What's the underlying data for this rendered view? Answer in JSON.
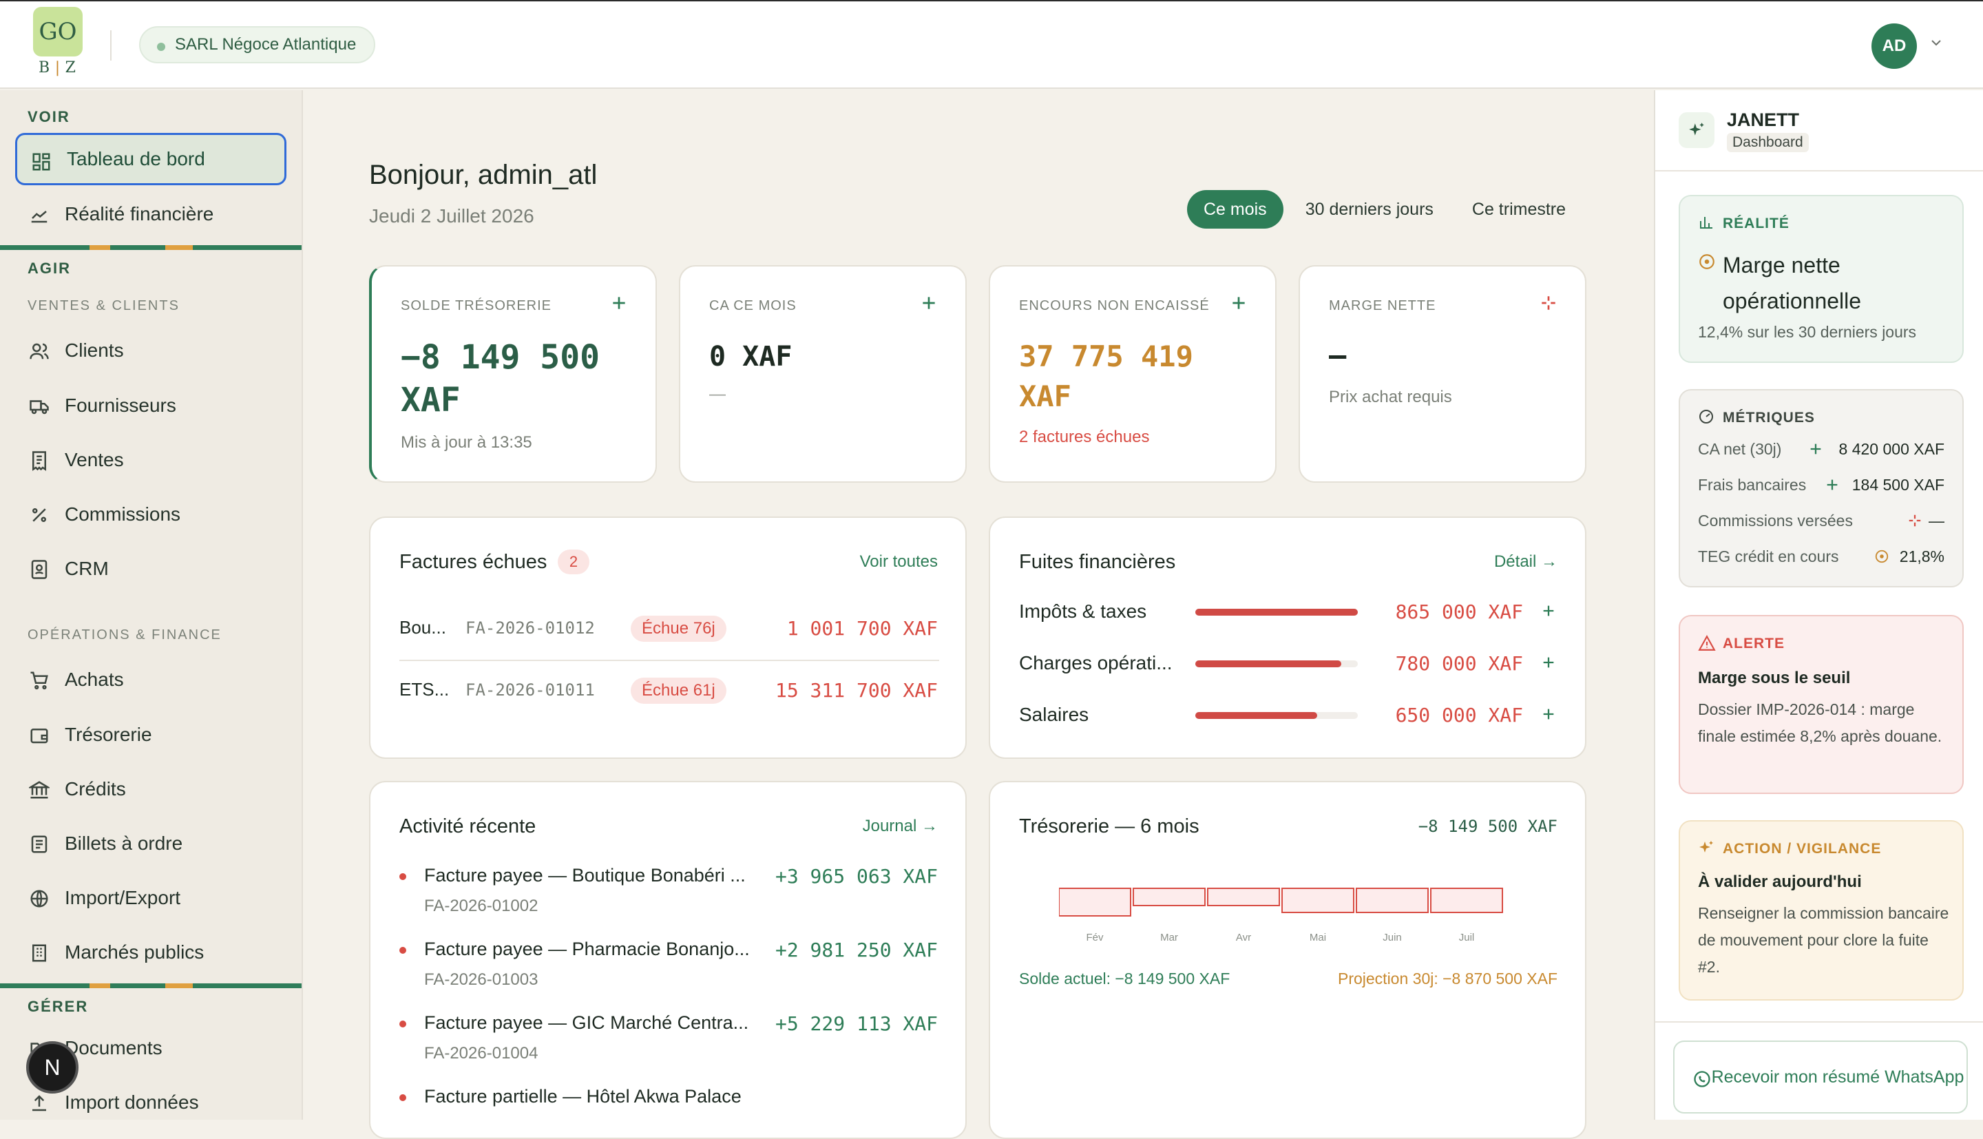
{
  "header": {
    "logo_top": "GO",
    "logo_bottom": "B🟂Z",
    "company": "SARL Négoce Atlantique",
    "avatar": "AD"
  },
  "sidebar": {
    "voir": "VOIR",
    "agir": "AGIR",
    "ventes_clients": "VENTES & CLIENTS",
    "ops_finance": "OPÉRATIONS & FINANCE",
    "gerer": "GÉRER",
    "items": [
      {
        "label": "Tableau de bord",
        "icon": "dashboard-icon"
      },
      {
        "label": "Réalité financière",
        "icon": "chart-area-icon"
      },
      {
        "label": "Clients",
        "icon": "users-icon"
      },
      {
        "label": "Fournisseurs",
        "icon": "truck-icon"
      },
      {
        "label": "Ventes",
        "icon": "receipt-icon"
      },
      {
        "label": "Commissions",
        "icon": "percent-icon"
      },
      {
        "label": "CRM",
        "icon": "contact-card-icon"
      },
      {
        "label": "Achats",
        "icon": "cart-icon"
      },
      {
        "label": "Trésorerie",
        "icon": "wallet-icon"
      },
      {
        "label": "Crédits",
        "icon": "bank-icon"
      },
      {
        "label": "Billets à ordre",
        "icon": "note-icon"
      },
      {
        "label": "Import/Export",
        "icon": "globe-icon"
      },
      {
        "label": "Marchés publics",
        "icon": "building-icon"
      },
      {
        "label": "Documents",
        "icon": "folder-icon"
      },
      {
        "label": "Import données",
        "icon": "upload-icon"
      }
    ],
    "n_badge": "N"
  },
  "main": {
    "greeting": "Bonjour, admin_atl",
    "date": "Jeudi 2 Juillet 2026",
    "periods": [
      "Ce mois",
      "30 derniers jours",
      "Ce trimestre"
    ],
    "kpis": [
      {
        "label": "SOLDE TRÉSORERIE",
        "value_line1": "−8 149 500",
        "value_line2": "XAF",
        "sub": "Mis à jour à 13:35"
      },
      {
        "label": "CA CE MOIS",
        "value_line1": "0 XAF",
        "sub": "—"
      },
      {
        "label": "ENCOURS NON ENCAISSÉ",
        "value_line1": "37 775 419",
        "value_line2": "XAF",
        "sub": "2 factures échues"
      },
      {
        "label": "MARGE NETTE",
        "value_line1": "—",
        "sub": "Prix achat requis"
      }
    ],
    "factures": {
      "title": "Factures échues",
      "count": "2",
      "link": "Voir toutes",
      "rows": [
        {
          "name": "Bou...",
          "ref": "FA-2026-01012",
          "badge": "Échue 76j",
          "amount": "1 001 700 XAF"
        },
        {
          "name": "ETS...",
          "ref": "FA-2026-01011",
          "badge": "Échue 61j",
          "amount": "15 311 700 XAF"
        }
      ]
    },
    "fuites": {
      "title": "Fuites financières",
      "link": "Détail →",
      "rows": [
        {
          "label": "Impôts & taxes",
          "amount": "865 000 XAF",
          "ratio": 1.0
        },
        {
          "label": "Charges opérati...",
          "amount": "780 000 XAF",
          "ratio": 0.9
        },
        {
          "label": "Salaires",
          "amount": "650 000 XAF",
          "ratio": 0.75
        }
      ]
    },
    "activite": {
      "title": "Activité récente",
      "link": "Journal →",
      "rows": [
        {
          "text": "Facture payee — Boutique Bonabéri ...",
          "ref": "FA-2026-01002",
          "amount": "+3 965 063 XAF"
        },
        {
          "text": "Facture payee — Pharmacie Bonanjo...",
          "ref": "FA-2026-01003",
          "amount": "+2 981 250 XAF"
        },
        {
          "text": "Facture payee — GIC Marché Centra...",
          "ref": "FA-2026-01004",
          "amount": "+5 229 113 XAF"
        },
        {
          "text": "Facture partielle — Hôtel Akwa Palace",
          "ref": "",
          "amount": ""
        }
      ]
    },
    "tresorerie": {
      "title": "Trésorerie — 6 mois",
      "total": "−8 149 500 XAF",
      "solde": "Solde actuel: −8 149 500 XAF",
      "projection": "Projection 30j: −8 870 500 XAF"
    }
  },
  "chart_data": {
    "type": "bar",
    "categories": [
      "Fév",
      "Mar",
      "Avr",
      "Mai",
      "Juin",
      "Juil"
    ],
    "series": [
      {
        "values": [
          -8.0,
          -5.0,
          -5.0,
          -7.0,
          -7.0,
          -7.0
        ]
      }
    ],
    "ylabel": "",
    "colors": {
      "bar_fill": "#fdecec",
      "bar_stroke": "#d84c43"
    }
  },
  "janett": {
    "name": "JANETT",
    "context": "Dashboard",
    "realite": {
      "head": "RÉALITÉ",
      "title": "Marge nette opérationnelle",
      "sub": "12,4% sur les 30 derniers jours"
    },
    "metriques": {
      "head": "MÉTRIQUES",
      "rows": [
        {
          "label": "CA net (30j)",
          "value": "8 420 000 XAF",
          "icon": "plus-icon"
        },
        {
          "label": "Frais bancaires",
          "value": "184 500 XAF",
          "icon": "plus-icon"
        },
        {
          "label": "Commissions versées",
          "value": "—",
          "icon": "dashed-plus-icon"
        },
        {
          "label": "TEG crédit en cours",
          "value": "21,8%",
          "icon": "target-icon"
        }
      ]
    },
    "alerte": {
      "head": "ALERTE",
      "title": "Marge sous le seuil",
      "body": "Dossier IMP-2026-014 : marge finale estimée 8,2% après douane."
    },
    "action": {
      "head": "ACTION / VIGILANCE",
      "title": "À valider aujourd'hui",
      "body": "Renseigner la commission bancaire de mouvement pour clore la fuite #2."
    },
    "whatsapp": "Recevoir mon résumé WhatsApp"
  },
  "colors": {
    "accent": "#2e7d57",
    "danger": "#d84c43",
    "warning": "#c8892f"
  }
}
